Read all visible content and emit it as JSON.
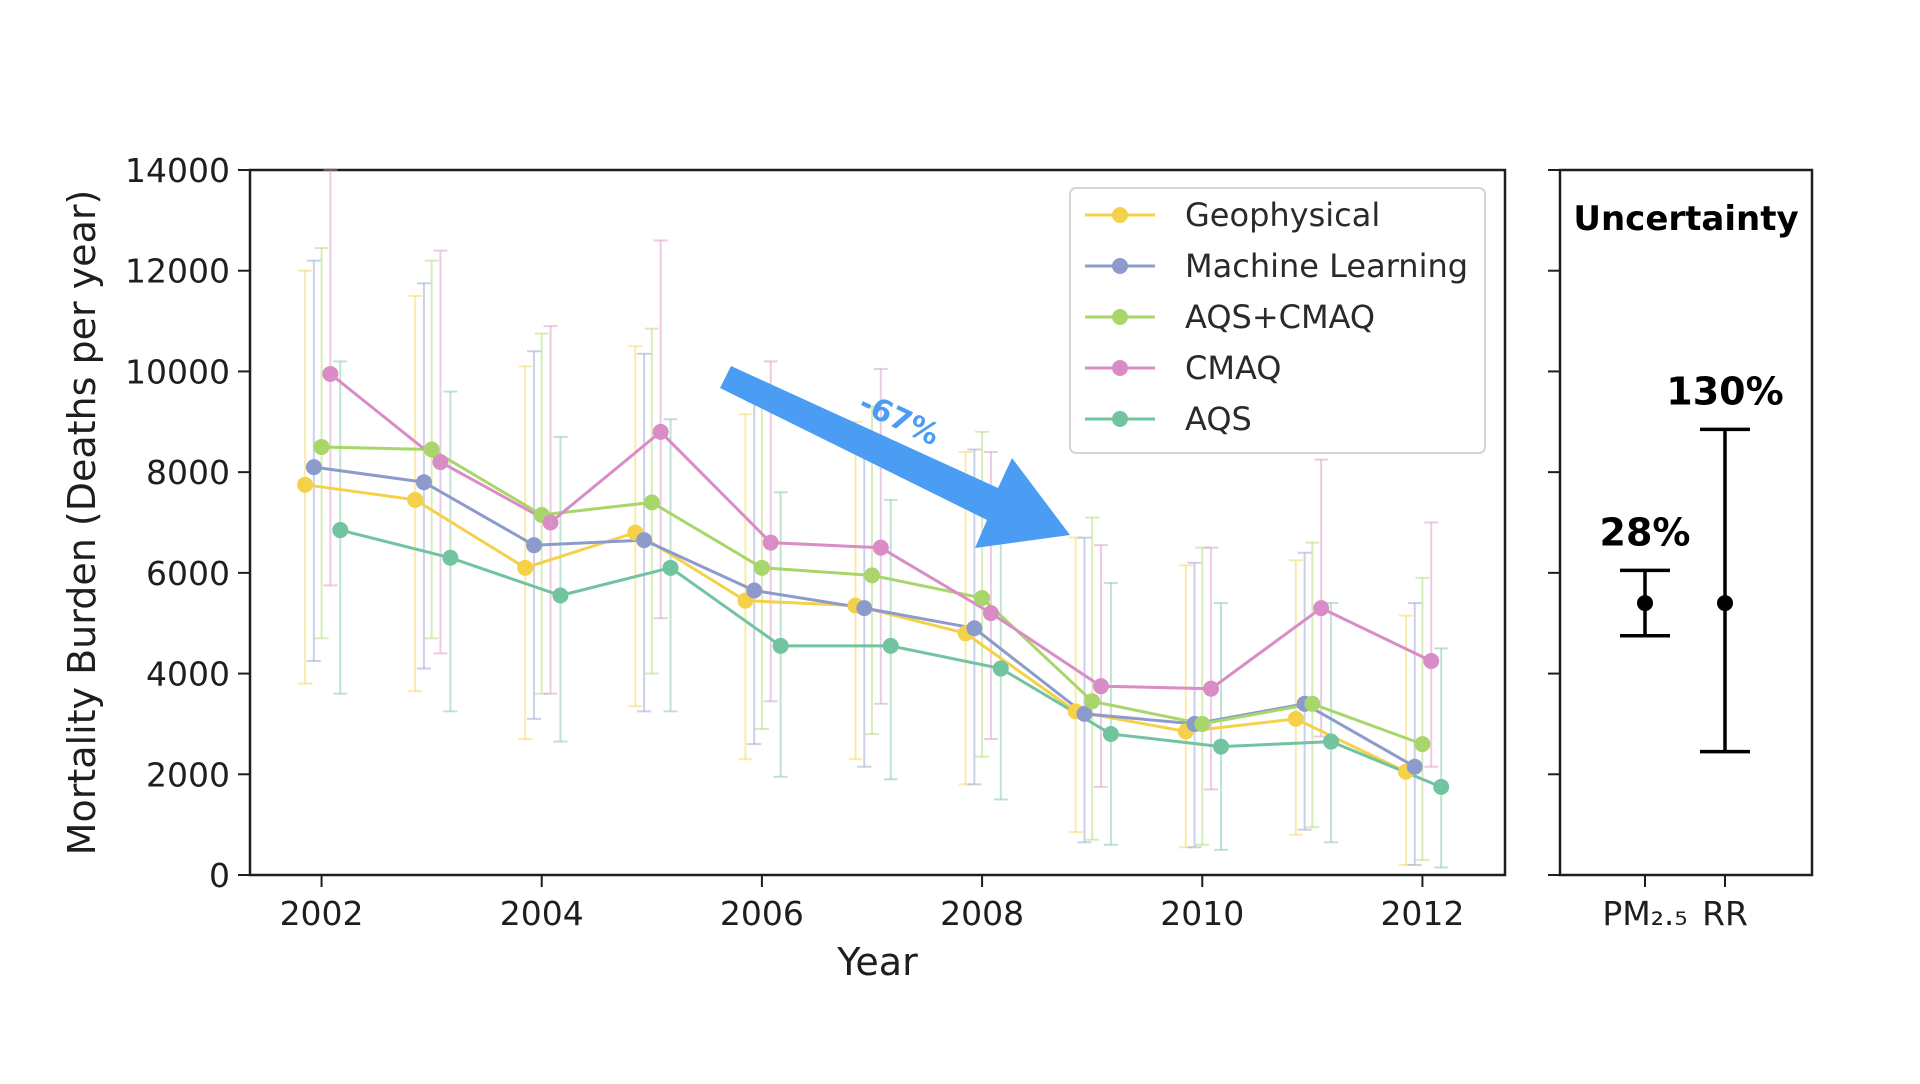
{
  "chart_data": [
    {
      "type": "line",
      "xlabel": "Year",
      "ylabel": "Mortality Burden (Deaths per year)",
      "xlim": [
        2001.35,
        2012.75
      ],
      "ylim": [
        0,
        14000
      ],
      "x_ticks": [
        "2002",
        "2004",
        "2006",
        "2008",
        "2010",
        "2012"
      ],
      "y_ticks": [
        "0",
        "2000",
        "4000",
        "6000",
        "8000",
        "10000",
        "12000",
        "14000"
      ],
      "grid": false,
      "legend_position": "top-right",
      "error_bars": true,
      "series": [
        {
          "name": "Geophysical",
          "color": "#f5d14a",
          "x": [
            2001.85,
            2002.85,
            2003.85,
            2004.85,
            2005.85,
            2006.85,
            2007.85,
            2008.85,
            2009.85,
            2010.85,
            2011.85
          ],
          "y": [
            7750,
            7450,
            6100,
            6800,
            5450,
            5350,
            4800,
            3250,
            2850,
            3100,
            2050
          ],
          "err_low": [
            3800,
            3650,
            2700,
            3350,
            2300,
            2300,
            1800,
            850,
            550,
            800,
            200
          ],
          "err_high": [
            12000,
            11500,
            10100,
            10500,
            9150,
            9000,
            8400,
            6700,
            6150,
            6250,
            5150
          ]
        },
        {
          "name": "Machine Learning",
          "color": "#8c9bcb",
          "x": [
            2001.93,
            2002.93,
            2003.93,
            2004.93,
            2005.93,
            2006.93,
            2007.93,
            2008.93,
            2009.93,
            2010.93,
            2011.93
          ],
          "y": [
            8100,
            7800,
            6550,
            6650,
            5650,
            5300,
            4900,
            3200,
            3000,
            3400,
            2150
          ],
          "err_low": [
            4250,
            4100,
            3100,
            3250,
            2600,
            2150,
            1800,
            650,
            550,
            900,
            200
          ],
          "err_high": [
            12200,
            11750,
            10400,
            10350,
            9400,
            8800,
            8450,
            6700,
            6200,
            6400,
            5400
          ]
        },
        {
          "name": "AQS+CMAQ",
          "color": "#a8d66a",
          "x": [
            2002.0,
            2003.0,
            2004.0,
            2005.0,
            2006.0,
            2007.0,
            2008.0,
            2009.0,
            2010.0,
            2011.0,
            2012.0
          ],
          "y": [
            8500,
            8450,
            7150,
            7400,
            6100,
            5950,
            5500,
            3450,
            3000,
            3400,
            2600
          ],
          "err_low": [
            4700,
            4700,
            3600,
            4000,
            2900,
            2800,
            2350,
            700,
            600,
            950,
            300
          ],
          "err_high": [
            12450,
            12200,
            10750,
            10850,
            9450,
            9300,
            8800,
            7100,
            6500,
            6600,
            5900
          ]
        },
        {
          "name": "CMAQ",
          "color": "#d98cc5",
          "x": [
            2002.08,
            2003.08,
            2004.08,
            2005.08,
            2006.08,
            2007.08,
            2008.08,
            2009.08,
            2010.08,
            2011.08,
            2012.08
          ],
          "y": [
            9950,
            8200,
            7000,
            8800,
            6600,
            6500,
            5200,
            3750,
            3700,
            5300,
            4250
          ],
          "err_low": [
            5750,
            4400,
            3600,
            5100,
            3450,
            3400,
            2700,
            1750,
            1700,
            2750,
            2150
          ],
          "err_high": [
            14000,
            12400,
            10900,
            12600,
            10200,
            10050,
            8400,
            6550,
            6500,
            8250,
            7000
          ]
        },
        {
          "name": "AQS",
          "color": "#72c3a0",
          "x": [
            2002.17,
            2003.17,
            2004.17,
            2005.17,
            2006.17,
            2007.17,
            2008.17,
            2009.17,
            2010.17,
            2011.17,
            2012.17
          ],
          "y": [
            6850,
            6300,
            5550,
            6100,
            4550,
            4550,
            4100,
            2800,
            2550,
            2650,
            1750
          ],
          "err_low": [
            3600,
            3250,
            2650,
            3250,
            1950,
            1900,
            1500,
            600,
            500,
            650,
            150
          ],
          "err_high": [
            10200,
            9600,
            8700,
            9050,
            7600,
            7450,
            6950,
            5800,
            5400,
            5400,
            4500
          ]
        }
      ],
      "annotation": {
        "text": "-67%",
        "color": "#4a9df3"
      }
    },
    {
      "type": "scatter",
      "title": "Uncertainty",
      "categories": [
        "PM₂.₅",
        "RR"
      ],
      "ylim": [
        0,
        14000
      ],
      "center": [
        5400,
        5400
      ],
      "err_low": [
        4750,
        2450
      ],
      "err_high": [
        6050,
        8850
      ],
      "labels": [
        "28%",
        "130%"
      ]
    }
  ]
}
